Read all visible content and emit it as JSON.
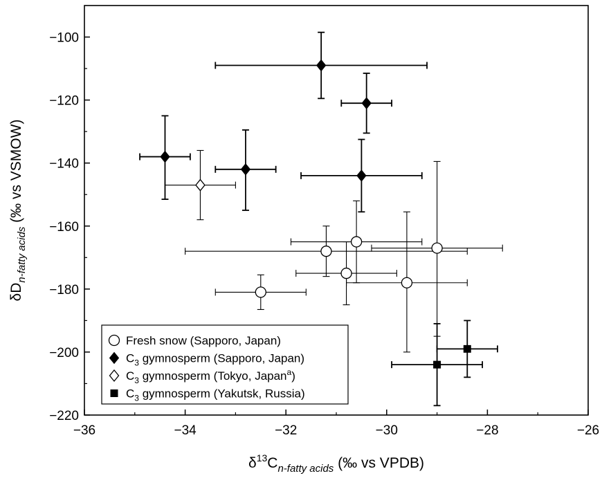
{
  "chart_data": {
    "type": "scatter",
    "title": "",
    "xlabel": {
      "delta": "δ",
      "sup": "13",
      "base": "C",
      "sub": "n-fatty acids",
      "unit": " (‰ vs VPDB)"
    },
    "ylabel": {
      "base": "δD",
      "sub": "n-fatty acids",
      "unit": " (‰ vs VSMOW)"
    },
    "xlim": [
      -36,
      -26
    ],
    "ylim": [
      -220,
      -90
    ],
    "xticks": [
      -36,
      -34,
      -32,
      -30,
      -28,
      -26
    ],
    "xtick_labels": [
      "−36",
      "−34",
      "−32",
      "−30",
      "−28",
      "−26"
    ],
    "yticks": [
      -220,
      -200,
      -180,
      -160,
      -140,
      -120,
      -100
    ],
    "ytick_labels": [
      "−220",
      "−200",
      "−180",
      "−160",
      "−140",
      "−120",
      "−100"
    ],
    "grid": false,
    "legend_position": "bottom-left",
    "series": [
      {
        "key": "fresh_snow",
        "name": "Fresh snow (Sapporo, Japan)",
        "marker": "open-circle",
        "points": [
          {
            "x": -32.5,
            "y": -181,
            "xerr": 0.9,
            "yerr_low": 5.5,
            "yerr_high": 5.5
          },
          {
            "x": -31.2,
            "y": -168,
            "xerr": 2.8,
            "yerr_low": 8,
            "yerr_high": 8
          },
          {
            "x": -30.8,
            "y": -175,
            "xerr": 1.0,
            "yerr_low": 10,
            "yerr_high": 10
          },
          {
            "x": -30.6,
            "y": -165,
            "xerr": 1.3,
            "yerr_low": 13,
            "yerr_high": 13
          },
          {
            "x": -29.6,
            "y": -178,
            "xerr": 1.2,
            "yerr_low": 22,
            "yerr_high": 22.5
          },
          {
            "x": -29.0,
            "y": -167,
            "xerr": 1.3,
            "yerr_low": 28,
            "yerr_high": 27.5
          }
        ]
      },
      {
        "key": "c3_sapporo",
        "name": "C3 gymnosperm (Sapporo, Japan)",
        "name_parts": [
          "C",
          "3",
          " gymnosperm (Sapporo, Japan)"
        ],
        "marker": "filled-diamond",
        "points": [
          {
            "x": -34.4,
            "y": -138,
            "xerr": 0.5,
            "yerr_low": 13.5,
            "yerr_high": 13
          },
          {
            "x": -32.8,
            "y": -142,
            "xerr": 0.6,
            "yerr_low": 13,
            "yerr_high": 12.5
          },
          {
            "x": -31.3,
            "y": -109,
            "xerr": 2.1,
            "yerr_low": 10.5,
            "yerr_high": 10.5
          },
          {
            "x": -30.4,
            "y": -121,
            "xerr": 0.5,
            "yerr_low": 9.5,
            "yerr_high": 9.5
          },
          {
            "x": -30.5,
            "y": -144,
            "xerr": 1.2,
            "yerr_low": 11.5,
            "yerr_high": 11.5
          }
        ]
      },
      {
        "key": "c3_tokyo",
        "name": "C3 gymnosperm (Tokyo, Japana)",
        "name_parts": [
          "C",
          "3",
          " gymnosperm (Tokyo, Japan",
          "a",
          ")"
        ],
        "marker": "open-diamond",
        "points": [
          {
            "x": -33.7,
            "y": -147,
            "xerr": 0.7,
            "yerr_low": 11,
            "yerr_high": 11
          }
        ]
      },
      {
        "key": "c3_yakutsk",
        "name": "C3 gymnosperm (Yakutsk, Russia)",
        "name_parts": [
          "C",
          "3",
          " gymnosperm (Yakutsk, Russia)"
        ],
        "marker": "filled-square",
        "points": [
          {
            "x": -29.0,
            "y": -204,
            "xerr": 0.9,
            "yerr_low": 13,
            "yerr_high": 13
          },
          {
            "x": -28.4,
            "y": -199,
            "xerr": 0.6,
            "yerr_low": 9,
            "yerr_high": 9
          }
        ]
      }
    ]
  }
}
